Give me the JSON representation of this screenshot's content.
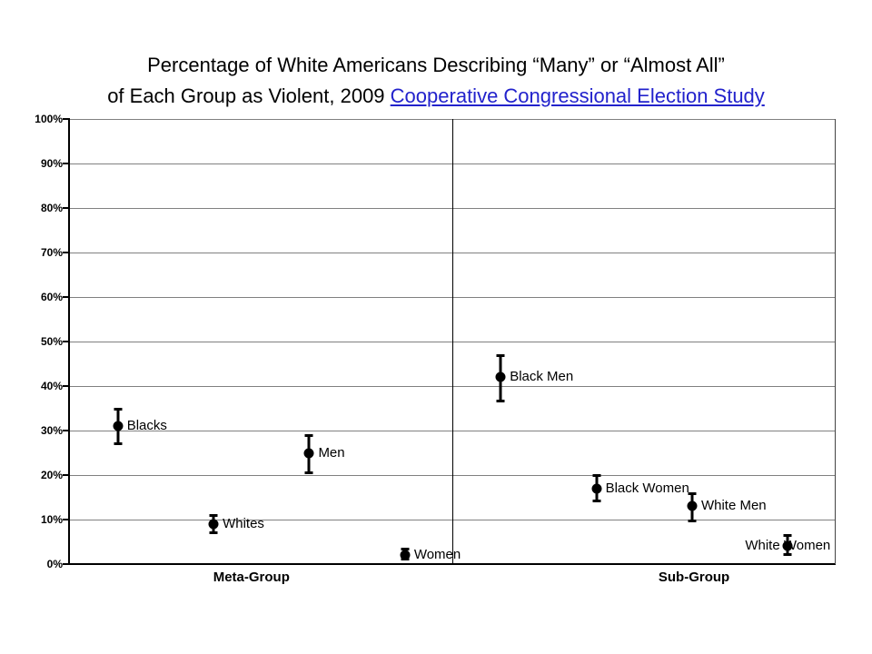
{
  "title": {
    "line1": "Percentage of White Americans Describing “Many” or “Almost All”",
    "line2_prefix": "of Each Group as Violent, 2009 ",
    "link_text": "Cooperative Congressional Election Study"
  },
  "chart_data": {
    "type": "scatter",
    "title": "Percentage of White Americans Describing “Many” or “Almost All” of Each Group as Violent, 2009 Cooperative Congressional Election Study",
    "subtitle_link_text": "Cooperative Congressional Election Study",
    "ylabel": "",
    "xlabel": "",
    "ylim": [
      0,
      100
    ],
    "y_ticks": [
      "0%",
      "10%",
      "20%",
      "30%",
      "40%",
      "50%",
      "60%",
      "70%",
      "80%",
      "90%",
      "100%"
    ],
    "grid": "horizontal",
    "legend": "none",
    "x_group_labels": [
      "Meta-Group",
      "Sub-Group"
    ],
    "points": [
      {
        "label": "Blacks",
        "group": "Meta-Group",
        "value": 31,
        "ci_low": 27,
        "ci_high": 35,
        "label_position": "right"
      },
      {
        "label": "Whites",
        "group": "Meta-Group",
        "value": 9,
        "ci_low": 7,
        "ci_high": 11,
        "label_position": "right"
      },
      {
        "label": "Men",
        "group": "Meta-Group",
        "value": 25,
        "ci_low": 20.5,
        "ci_high": 29,
        "label_position": "right"
      },
      {
        "label": "Women",
        "group": "Meta-Group",
        "value": 2,
        "ci_low": 1,
        "ci_high": 3.5,
        "label_position": "right"
      },
      {
        "label": "Black Men",
        "group": "Sub-Group",
        "value": 42,
        "ci_low": 36.5,
        "ci_high": 47,
        "label_position": "right"
      },
      {
        "label": "Black Women",
        "group": "Sub-Group",
        "value": 17,
        "ci_low": 14,
        "ci_high": 20,
        "label_position": "right"
      },
      {
        "label": "White Men",
        "group": "Sub-Group",
        "value": 13,
        "ci_low": 9.5,
        "ci_high": 16,
        "label_position": "right"
      },
      {
        "label": "White Women",
        "group": "Sub-Group",
        "value": 4,
        "ci_low": 2,
        "ci_high": 6.5,
        "label_position": "center"
      }
    ],
    "colors": {
      "point": "#000000",
      "error_bar": "#000000",
      "gridline": "#808080",
      "axis": "#000000",
      "text": "#000000",
      "link": "#2222CC",
      "background": "#ffffff"
    }
  }
}
